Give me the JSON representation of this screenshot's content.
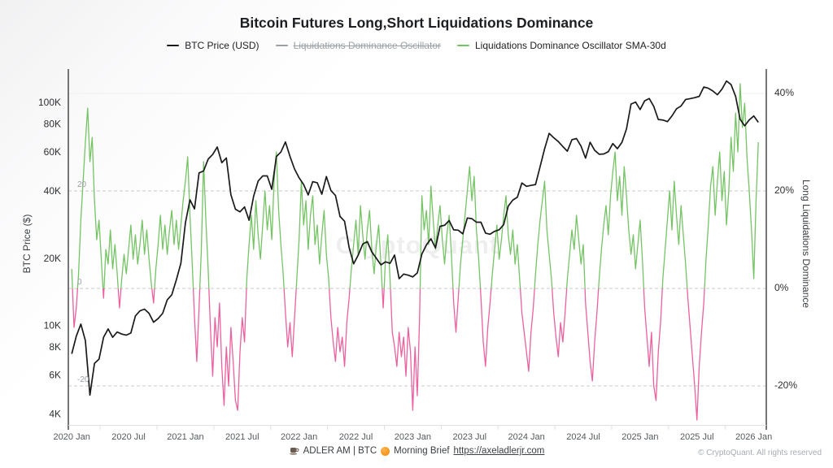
{
  "title": "Bitcoin Futures Long,Short Liquidations Dominance",
  "legend": {
    "items": [
      {
        "label": "BTC Price (USD)",
        "color": "#1a1a1a",
        "disabled": false
      },
      {
        "label": "Liquidations Dominance Oscillator",
        "color": "#9aa0a6",
        "disabled": true
      },
      {
        "label": "Liquidations Dominance Oscillator SMA-30d",
        "color": "#74c464",
        "disabled": false
      }
    ]
  },
  "watermark": "CryptoQuant",
  "footer": {
    "brand": "ADLER AM | BTC",
    "brief": "Morning Brief",
    "url": "https://axeladlerjr.com"
  },
  "copyright": "© CryptoQuant. All rights reserved",
  "chart_data": {
    "type": "line",
    "title": "Bitcoin Futures Long,Short Liquidations Dominance",
    "xlim": [
      2019.97,
      2026.11
    ],
    "x_ticks": [
      2020.0,
      2020.5,
      2021.0,
      2021.5,
      2022.0,
      2022.5,
      2023.0,
      2023.5,
      2024.0,
      2024.5,
      2025.0,
      2025.5,
      2026.0
    ],
    "x_tick_labels": [
      "2020 Jan",
      "2020 Jul",
      "2021 Jan",
      "2021 Jul",
      "2022 Jan",
      "2022 Jul",
      "2023 Jan",
      "2023 Jul",
      "2024 Jan",
      "2024 Jul",
      "2025 Jan",
      "2025 Jul",
      "2026 Jan"
    ],
    "price_axis": {
      "title": "BTC Price ($)",
      "scale": "log",
      "ylim_k": [
        3.6,
        142
      ],
      "ticks_k": [
        4,
        6,
        8,
        10,
        20,
        40,
        60,
        80,
        100
      ],
      "tick_labels": [
        "4K",
        "6K",
        "8K",
        "10K",
        "20K",
        "40K",
        "60K",
        "80K",
        "100K"
      ]
    },
    "osc_axis": {
      "title": "Long Liquidations Dominance",
      "scale": "linear",
      "ylim_pct": [
        -28,
        45
      ],
      "ticks_pct": [
        -20,
        0,
        20,
        40
      ],
      "tick_labels": [
        "-20%",
        "0%",
        "20%",
        "40%"
      ]
    },
    "gridlines": {
      "dashed_at_pct": [
        20,
        0,
        -20
      ],
      "faint_at_pct": [
        40
      ],
      "inner_labels": [
        {
          "v": 20,
          "label": "20"
        },
        {
          "v": 0,
          "label": "0"
        },
        {
          "v": -20,
          "label": "-20"
        }
      ]
    },
    "series": [
      {
        "name": "BTC Price (USD)",
        "axis": "price",
        "color": "#1a1a1a",
        "visible": true,
        "t_start": 2020.0,
        "t_step": 0.04,
        "values_k": [
          7.5,
          9.0,
          10.2,
          8.6,
          4.9,
          6.8,
          7.1,
          8.9,
          9.7,
          8.9,
          9.4,
          9.2,
          9.1,
          9.3,
          11.1,
          11.7,
          11.9,
          11.4,
          10.4,
          10.8,
          11.4,
          13.1,
          13.8,
          16.1,
          19.1,
          29.0,
          36.8,
          33.5,
          48.6,
          49.6,
          56.0,
          58.8,
          63.5,
          54.0,
          56.7,
          38.8,
          33.4,
          32.5,
          34.2,
          29.8,
          38.2,
          44.7,
          47.1,
          47.1,
          41.0,
          57.5,
          60.3,
          66.9,
          57.6,
          50.6,
          46.2,
          43.1,
          38.7,
          44.4,
          43.9,
          39.0,
          46.8,
          40.5,
          38.5,
          31.0,
          29.5,
          22.5,
          19.0,
          20.8,
          23.3,
          23.9,
          21.5,
          20.1,
          18.8,
          19.4,
          19.1,
          20.8,
          16.3,
          17.1,
          16.9,
          16.6,
          17.3,
          21.0,
          23.1,
          24.6,
          22.4,
          28.0,
          28.3,
          29.7,
          27.0,
          26.9,
          25.9,
          30.5,
          30.3,
          29.2,
          29.2,
          26.1,
          25.8,
          26.6,
          27.0,
          28.5,
          34.5,
          36.7,
          37.8,
          43.8,
          42.3,
          42.7,
          43.1,
          51.8,
          62.4,
          73.1,
          69.9,
          67.2,
          63.8,
          60.8,
          68.5,
          69.3,
          64.1,
          56.6,
          66.7,
          61.4,
          58.9,
          59.1,
          60.5,
          65.8,
          62.4,
          66.6,
          76.5,
          98.9,
          101.0,
          93.5,
          102.3,
          104.8,
          96.6,
          84.3,
          83.9,
          82.5,
          87.5,
          94.2,
          97.0,
          103.7,
          104.6,
          105.7,
          107.1,
          118.0,
          116.5,
          113.2,
          108.9,
          115.4,
          125.5,
          121.0,
          107.2,
          84.5,
          79.0,
          84.0,
          87.5,
          82.0
        ]
      },
      {
        "name": "Liquidations Dominance Oscillator",
        "axis": "osc",
        "color": "#9aa0a6",
        "visible": false,
        "values_pct": []
      },
      {
        "name": "Liquidations Dominance Oscillator SMA-30d",
        "axis": "osc",
        "color_positive": "#74c464",
        "color_negative": "#ec609f",
        "visible": true,
        "t_start": 2020.0,
        "t_step": 0.02,
        "values_pct": [
          4,
          -8,
          -4,
          3,
          14,
          22,
          30,
          37,
          26,
          31,
          18,
          10,
          14,
          6,
          -2,
          8,
          5,
          12,
          4,
          9,
          3,
          -4,
          2,
          7,
          3,
          8,
          13,
          6,
          11,
          5,
          9,
          14,
          7,
          12,
          6,
          1,
          -3,
          4,
          9,
          15,
          8,
          13,
          7,
          12,
          16,
          9,
          14,
          8,
          13,
          18,
          22,
          27,
          15,
          5,
          -6,
          -15,
          -4,
          8,
          26,
          14,
          4,
          -8,
          -18,
          -6,
          -12,
          -3,
          -16,
          -24,
          -12,
          -20,
          -8,
          -15,
          -23,
          -25,
          -13,
          -6,
          -11,
          2,
          9,
          15,
          8,
          18,
          11,
          6,
          13,
          20,
          12,
          17,
          10,
          22,
          28,
          16,
          9,
          3,
          -5,
          -12,
          -7,
          -14,
          -6,
          2,
          10,
          22,
          13,
          18,
          8,
          15,
          19,
          9,
          13,
          5,
          11,
          16,
          7,
          2,
          -6,
          -11,
          -15,
          -8,
          -13,
          -10,
          -16,
          -7,
          -2,
          4,
          9,
          14,
          7,
          17,
          11,
          6,
          12,
          16,
          8,
          3,
          9,
          13,
          5,
          -4,
          6,
          11,
          2,
          -9,
          -12,
          -16,
          -9,
          -14,
          -10,
          -18,
          -8,
          -13,
          -25,
          -12,
          -22,
          -6,
          19,
          12,
          16,
          9,
          21,
          14,
          8,
          13,
          17,
          10,
          5,
          11,
          15,
          7,
          -3,
          -9,
          -2,
          5,
          10,
          15,
          20,
          25,
          18,
          23,
          12,
          6,
          -2,
          -11,
          -16,
          -8,
          -3,
          3,
          8,
          13,
          6,
          10,
          15,
          19,
          11,
          7,
          12,
          5,
          9,
          2,
          -5,
          -9,
          -13,
          -17,
          -9,
          -4,
          3,
          9,
          14,
          18,
          22,
          12,
          7,
          2,
          -5,
          -10,
          -14,
          -7,
          -11,
          -5,
          2,
          7,
          12,
          8,
          15,
          10,
          5,
          9,
          -3,
          -9,
          -15,
          -19,
          -11,
          -5,
          2,
          8,
          13,
          17,
          11,
          19,
          24,
          28,
          18,
          23,
          15,
          25,
          19,
          12,
          7,
          11,
          4,
          9,
          14,
          6,
          -4,
          -10,
          -16,
          -9,
          -20,
          -23,
          -13,
          -7,
          2,
          8,
          14,
          20,
          12,
          22,
          15,
          9,
          17,
          11,
          5,
          -2,
          -8,
          -14,
          -20,
          -27,
          -16,
          -9,
          -3,
          6,
          13,
          21,
          25,
          15,
          22,
          28,
          18,
          24,
          13,
          20,
          31,
          24,
          36,
          28,
          42,
          33,
          38,
          27,
          20,
          12,
          2,
          18,
          30
        ]
      }
    ]
  }
}
